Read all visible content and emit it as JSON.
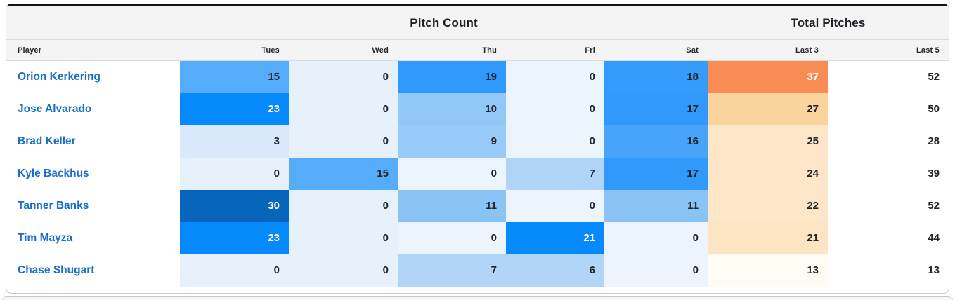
{
  "table": {
    "group_headers": {
      "pitch_count": "Pitch Count",
      "total_pitches": "Total Pitches"
    },
    "columns": [
      "Player",
      "Tues",
      "Wed",
      "Thu",
      "Fri",
      "Sat",
      "Last 3",
      "Last 5"
    ],
    "rows": [
      {
        "player": "Orion Kerkering",
        "cells": [
          {
            "v": "15",
            "bg": "#55acfa",
            "white": false
          },
          {
            "v": "0",
            "bg": "#e7f1fc",
            "white": false
          },
          {
            "v": "19",
            "bg": "#2f9afb",
            "white": false
          },
          {
            "v": "0",
            "bg": "#ecf4fd",
            "white": false
          },
          {
            "v": "18",
            "bg": "#339cfa",
            "white": false
          },
          {
            "v": "37",
            "bg": "#f98c55",
            "white": true
          },
          {
            "v": "52",
            "bg": null,
            "white": false
          }
        ]
      },
      {
        "player": "Jose Alvarado",
        "cells": [
          {
            "v": "23",
            "bg": "#0689fb",
            "white": true
          },
          {
            "v": "0",
            "bg": "#e7f1fc",
            "white": false
          },
          {
            "v": "10",
            "bg": "#92c8f7",
            "white": false
          },
          {
            "v": "0",
            "bg": "#ecf4fd",
            "white": false
          },
          {
            "v": "17",
            "bg": "#2f9afb",
            "white": false
          },
          {
            "v": "27",
            "bg": "#fbd49d",
            "white": false
          },
          {
            "v": "50",
            "bg": null,
            "white": false
          }
        ]
      },
      {
        "player": "Brad Keller",
        "cells": [
          {
            "v": "3",
            "bg": "#d9e9fb",
            "white": false
          },
          {
            "v": "0",
            "bg": "#e7f1fc",
            "white": false
          },
          {
            "v": "9",
            "bg": "#98cbf7",
            "white": false
          },
          {
            "v": "0",
            "bg": "#ecf4fd",
            "white": false
          },
          {
            "v": "16",
            "bg": "#47a4f9",
            "white": false
          },
          {
            "v": "25",
            "bg": "#fee7c8",
            "white": false
          },
          {
            "v": "28",
            "bg": null,
            "white": false
          }
        ]
      },
      {
        "player": "Kyle Backhus",
        "cells": [
          {
            "v": "0",
            "bg": "#e7f1fc",
            "white": false
          },
          {
            "v": "15",
            "bg": "#55acfa",
            "white": false
          },
          {
            "v": "0",
            "bg": "#ecf4fd",
            "white": false
          },
          {
            "v": "7",
            "bg": "#b0d5f8",
            "white": false
          },
          {
            "v": "17",
            "bg": "#2f9afb",
            "white": false
          },
          {
            "v": "24",
            "bg": "#fee7c8",
            "white": false
          },
          {
            "v": "39",
            "bg": null,
            "white": false
          }
        ]
      },
      {
        "player": "Tanner Banks",
        "cells": [
          {
            "v": "30",
            "bg": "#0766bb",
            "white": true
          },
          {
            "v": "0",
            "bg": "#e7f1fc",
            "white": false
          },
          {
            "v": "11",
            "bg": "#8ac4f7",
            "white": false
          },
          {
            "v": "0",
            "bg": "#ecf4fd",
            "white": false
          },
          {
            "v": "11",
            "bg": "#8ac4f7",
            "white": false
          },
          {
            "v": "22",
            "bg": "#fee7c8",
            "white": false
          },
          {
            "v": "52",
            "bg": null,
            "white": false
          }
        ]
      },
      {
        "player": "Tim Mayza",
        "cells": [
          {
            "v": "23",
            "bg": "#0689fb",
            "white": true
          },
          {
            "v": "0",
            "bg": "#e7f1fc",
            "white": false
          },
          {
            "v": "0",
            "bg": "#ecf4fd",
            "white": false
          },
          {
            "v": "21",
            "bg": "#0689fb",
            "white": true
          },
          {
            "v": "0",
            "bg": "#ecf4fd",
            "white": false
          },
          {
            "v": "21",
            "bg": "#fde4c2",
            "white": false
          },
          {
            "v": "44",
            "bg": null,
            "white": false
          }
        ]
      },
      {
        "player": "Chase Shugart",
        "cells": [
          {
            "v": "0",
            "bg": "#e7f1fc",
            "white": false
          },
          {
            "v": "0",
            "bg": "#e7f1fc",
            "white": false
          },
          {
            "v": "7",
            "bg": "#b0d5f8",
            "white": false
          },
          {
            "v": "6",
            "bg": "#b0d5f8",
            "white": false
          },
          {
            "v": "0",
            "bg": "#ecf4fd",
            "white": false
          },
          {
            "v": "13",
            "bg": "#fffcf6",
            "white": false
          },
          {
            "v": "13",
            "bg": null,
            "white": false
          }
        ]
      }
    ]
  },
  "colors": {
    "card_top_bar": "#141414",
    "header_background": "#f4f4f5",
    "header_border": "#dcdcdc",
    "card_border": "#c9c9c9",
    "player_link": "#1a6fc9",
    "value_text": "#222428",
    "blue_scale_max": "#0766bb",
    "blue_scale_min": "#e7f1fc",
    "orange_scale_max": "#f98c55",
    "orange_scale_min": "#fffcf6"
  },
  "chart_data": {
    "type": "heatmap",
    "title": "Pitch Count / Total Pitches",
    "column_groups": [
      {
        "label": "Pitch Count",
        "columns": [
          "Tues",
          "Wed",
          "Thu",
          "Fri",
          "Sat"
        ]
      },
      {
        "label": "Total Pitches",
        "columns": [
          "Last 3",
          "Last 5"
        ]
      }
    ],
    "columns": [
      "Tues",
      "Wed",
      "Thu",
      "Fri",
      "Sat",
      "Last 3",
      "Last 5"
    ],
    "row_labels": [
      "Orion Kerkering",
      "Jose Alvarado",
      "Brad Keller",
      "Kyle Backhus",
      "Tanner Banks",
      "Tim Mayza",
      "Chase Shugart"
    ],
    "values": [
      [
        15,
        0,
        19,
        0,
        18,
        37,
        52
      ],
      [
        23,
        0,
        10,
        0,
        17,
        27,
        50
      ],
      [
        3,
        0,
        9,
        0,
        16,
        25,
        28
      ],
      [
        0,
        15,
        0,
        7,
        17,
        24,
        39
      ],
      [
        30,
        0,
        11,
        0,
        11,
        22,
        52
      ],
      [
        23,
        0,
        0,
        21,
        0,
        21,
        44
      ],
      [
        0,
        0,
        7,
        6,
        0,
        13,
        13
      ]
    ],
    "layout_hints": {
      "heatmap_scales": "blue scale on day columns (0=light, 30=dark), orange scale on Last 3 column",
      "last5_column_uncolored": true
    }
  }
}
